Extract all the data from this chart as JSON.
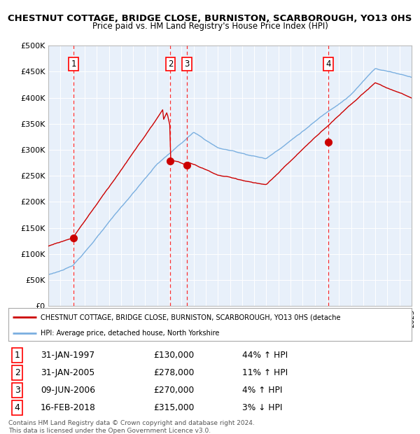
{
  "title": "CHESTNUT COTTAGE, BRIDGE CLOSE, BURNISTON, SCARBOROUGH, YO13 0HS",
  "subtitle": "Price paid vs. HM Land Registry's House Price Index (HPI)",
  "price_paid_color": "#cc0000",
  "hpi_color": "#7aafe0",
  "background_color": "#e8f0fa",
  "grid_color": "#ffffff",
  "sale_year_nums": [
    1997.08,
    2005.08,
    2006.44,
    2018.12
  ],
  "sale_prices": [
    130000,
    278000,
    270000,
    315000
  ],
  "sale_labels": [
    "1",
    "2",
    "3",
    "4"
  ],
  "sale_info": [
    {
      "label": "1",
      "date": "31-JAN-1997",
      "price": "£130,000",
      "hpi": "44% ↑ HPI"
    },
    {
      "label": "2",
      "date": "31-JAN-2005",
      "price": "£278,000",
      "hpi": "11% ↑ HPI"
    },
    {
      "label": "3",
      "date": "09-JUN-2006",
      "price": "£270,000",
      "hpi": "4% ↑ HPI"
    },
    {
      "label": "4",
      "date": "16-FEB-2018",
      "price": "£315,000",
      "hpi": "3% ↓ HPI"
    }
  ],
  "yticks": [
    0,
    50000,
    100000,
    150000,
    200000,
    250000,
    300000,
    350000,
    400000,
    450000,
    500000
  ],
  "ytick_labels": [
    "£0",
    "£50K",
    "£100K",
    "£150K",
    "£200K",
    "£250K",
    "£300K",
    "£350K",
    "£400K",
    "£450K",
    "£500K"
  ],
  "legend_property_label": "CHESTNUT COTTAGE, BRIDGE CLOSE, BURNISTON, SCARBOROUGH, YO13 0HS (detache",
  "legend_hpi_label": "HPI: Average price, detached house, North Yorkshire",
  "footer": "Contains HM Land Registry data © Crown copyright and database right 2024.\nThis data is licensed under the Open Government Licence v3.0.",
  "x_start_year": 1995,
  "x_end_year": 2025
}
